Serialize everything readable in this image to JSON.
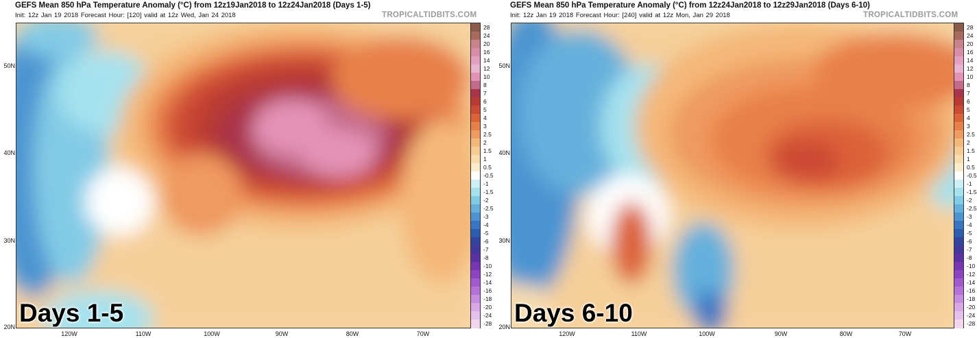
{
  "scale": {
    "labels": [
      "28",
      "24",
      "20",
      "16",
      "14",
      "12",
      "10",
      "8",
      "7",
      "6",
      "5",
      "4",
      "3",
      "2.5",
      "2",
      "1.5",
      "1",
      "0.5",
      "-0.5",
      "-1",
      "-1.5",
      "-2",
      "-2.5",
      "-3",
      "-4",
      "-5",
      "-6",
      "-7",
      "-8",
      "-10",
      "-12",
      "-14",
      "-16",
      "-18",
      "-20",
      "-24",
      "-28"
    ],
    "colors": [
      "#8a5a4a",
      "#a86a5e",
      "#c8828a",
      "#d98ca8",
      "#e3a0c0",
      "#e9b4cf",
      "#e493b6",
      "#c46a8a",
      "#a8334a",
      "#b83a32",
      "#cc4a34",
      "#dc6238",
      "#e8804a",
      "#ef9a5e",
      "#f4b878",
      "#f6cc94",
      "#f8dcae",
      "#faecca",
      "#ffffff",
      "#cdeef4",
      "#a6e2ee",
      "#82cbe6",
      "#64b0dc",
      "#4c94d2",
      "#3876c4",
      "#2c5cb0",
      "#33449e",
      "#43389e",
      "#5a32a6",
      "#7636b4",
      "#8c44c2",
      "#a258ce",
      "#b472d8",
      "#c68ce0",
      "#d8a8e6",
      "#e6c0ec",
      "#f2d6f0"
    ]
  },
  "panels": [
    {
      "title": "GEFS Mean 850 hPa Temperature Anomaly (°C) from 12z19Jan2018 to 12z24Jan2018 (Days 1-5)",
      "subtitle": "Init: 12z Jan 19 2018   Forecast Hour: [120]   valid at 12z Wed, Jan 24 2018",
      "brand": "TROPICALTIDBITS.COM",
      "days_label": "Days 1-5",
      "lat_labels": [
        "50N",
        "40N",
        "30N",
        "20N"
      ],
      "lon_labels": [
        "120W",
        "110W",
        "100W",
        "90W",
        "80W",
        "70W"
      ],
      "lat_pos": [
        0.145,
        0.43,
        0.72,
        1.0
      ],
      "lon_pos": [
        0.118,
        0.28,
        0.445,
        0.605,
        0.765,
        0.905
      ],
      "anomaly": "warm-east"
    },
    {
      "title": "GEFS Mean 850 hPa Temperature Anomaly (°C) from 12z24Jan2018 to 12z29Jan2018 (Days 6-10)",
      "subtitle": "Init: 12z Jan 19 2018   Forecast Hour: [240]   valid at 12z Mon, Jan 29 2018",
      "brand": "TROPICALTIDBITS.COM",
      "days_label": "Days 6-10",
      "lat_labels": [
        "50N",
        "40N",
        "30N",
        "20N"
      ],
      "lon_labels": [
        "120W",
        "110W",
        "100W",
        "90W",
        "80W",
        "70W"
      ],
      "lat_pos": [
        0.145,
        0.43,
        0.72,
        1.0
      ],
      "lon_pos": [
        0.118,
        0.28,
        0.445,
        0.605,
        0.765,
        0.905
      ],
      "anomaly": "mild-east"
    }
  ]
}
